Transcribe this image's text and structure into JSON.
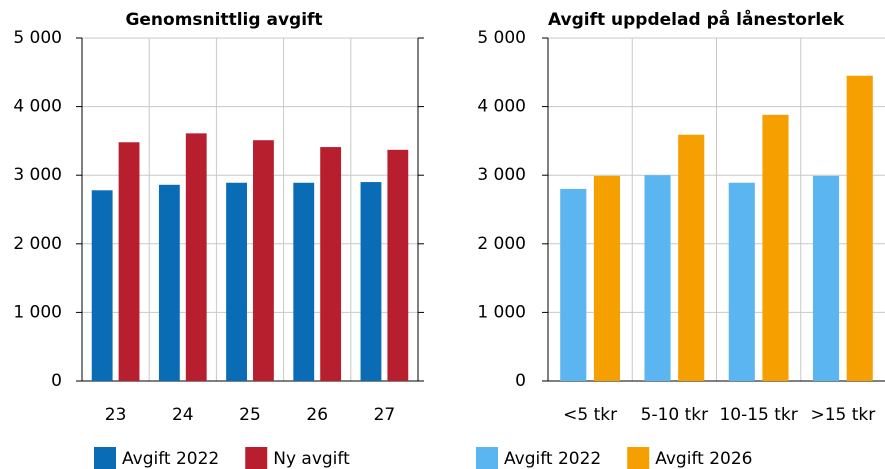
{
  "chart_data": [
    {
      "type": "bar",
      "title": "Genomsnittlig avgift",
      "categories": [
        "23",
        "24",
        "25",
        "26",
        "27"
      ],
      "series": [
        {
          "name": "Avgift 2022",
          "color": "#0a6cb4",
          "values": [
            2780,
            2860,
            2890,
            2890,
            2900
          ]
        },
        {
          "name": "Ny avgift",
          "color": "#b81f2e",
          "values": [
            3480,
            3610,
            3510,
            3410,
            3370
          ]
        }
      ],
      "ylim": [
        0,
        5000
      ],
      "yticks": [
        0,
        {
          "value": 1000,
          "label": "1 000"
        },
        {
          "value": 2000,
          "label": "2 000"
        },
        {
          "value": 3000,
          "label": "3 000"
        },
        {
          "value": 4000,
          "label": "4 000"
        },
        {
          "value": 5000,
          "label": "5 000"
        }
      ],
      "grid": true
    },
    {
      "type": "bar",
      "title": "Avgift uppdelad på lånestorlek",
      "categories": [
        "<5 tkr",
        "5-10 tkr",
        "10-15 tkr",
        ">15 tkr"
      ],
      "series": [
        {
          "name": "Avgift 2022",
          "color": "#5bb5f0",
          "values": [
            2800,
            3000,
            2890,
            2990
          ]
        },
        {
          "name": "Avgift 2026",
          "color": "#f5a000",
          "values": [
            2990,
            3590,
            3880,
            4450
          ]
        }
      ],
      "ylim": [
        0,
        5000
      ],
      "yticks": [
        0,
        {
          "value": 1000,
          "label": "1 000"
        },
        {
          "value": 2000,
          "label": "2 000"
        },
        {
          "value": 3000,
          "label": "3 000"
        },
        {
          "value": 4000,
          "label": "4 000"
        },
        {
          "value": 5000,
          "label": "5 000"
        }
      ],
      "grid": true
    }
  ]
}
